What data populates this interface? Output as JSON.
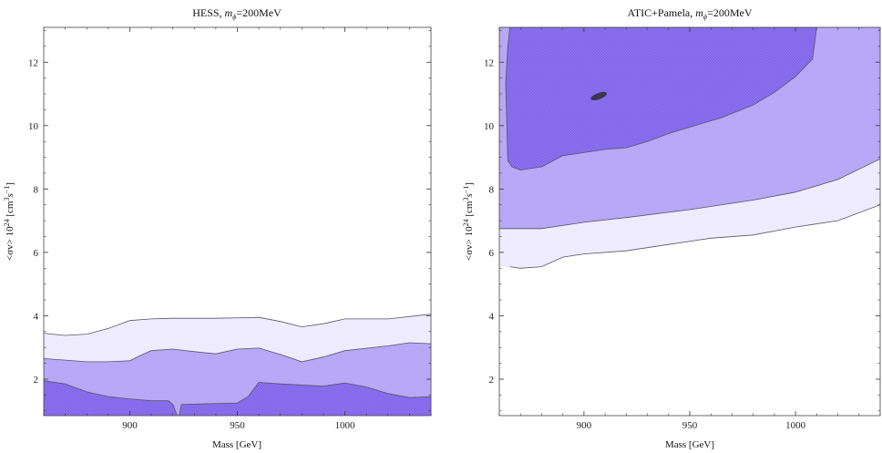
{
  "chart_data": [
    {
      "type": "contour",
      "title": "HESS, ",
      "title_param": "m",
      "title_sub": "ϕ",
      "title_value": "=200MeV",
      "xlabel": "Mass [GeV]",
      "ylabel_prefix": "<σv> 10",
      "ylabel_exp": "24",
      "ylabel_unit_open": " [cm",
      "ylabel_unit_exp1": "3",
      "ylabel_unit_mid": "s",
      "ylabel_unit_exp2": "−1",
      "ylabel_unit_close": "]",
      "xlim": [
        860,
        1040
      ],
      "ylim": [
        0.85,
        13.1
      ],
      "xticks": [
        900,
        950,
        1000
      ],
      "yticks": [
        2,
        4,
        6,
        8,
        10,
        12
      ],
      "colors": {
        "light": "#eeeaff",
        "mid": "#b3a3f6",
        "dark": "#7f63ea",
        "edge": "#555566"
      },
      "regions": [
        {
          "level": "light",
          "upper": [
            [
              860,
              3.45
            ],
            [
              870,
              3.38
            ],
            [
              880,
              3.42
            ],
            [
              890,
              3.6
            ],
            [
              900,
              3.85
            ],
            [
              910,
              3.9
            ],
            [
              920,
              3.92
            ],
            [
              940,
              3.92
            ],
            [
              960,
              3.95
            ],
            [
              970,
              3.82
            ],
            [
              980,
              3.65
            ],
            [
              990,
              3.75
            ],
            [
              1000,
              3.9
            ],
            [
              1020,
              3.9
            ],
            [
              1040,
              4.05
            ]
          ]
        },
        {
          "level": "mid",
          "upper": [
            [
              860,
              2.65
            ],
            [
              870,
              2.6
            ],
            [
              880,
              2.55
            ],
            [
              890,
              2.55
            ],
            [
              900,
              2.58
            ],
            [
              905,
              2.75
            ],
            [
              910,
              2.9
            ],
            [
              920,
              2.95
            ],
            [
              930,
              2.87
            ],
            [
              940,
              2.8
            ],
            [
              950,
              2.95
            ],
            [
              960,
              2.98
            ],
            [
              970,
              2.78
            ],
            [
              980,
              2.55
            ],
            [
              990,
              2.7
            ],
            [
              1000,
              2.9
            ],
            [
              1020,
              3.05
            ],
            [
              1030,
              3.15
            ],
            [
              1040,
              3.12
            ]
          ]
        },
        {
          "level": "dark",
          "upper": [
            [
              860,
              1.95
            ],
            [
              870,
              1.85
            ],
            [
              880,
              1.6
            ],
            [
              890,
              1.45
            ],
            [
              900,
              1.38
            ],
            [
              910,
              1.32
            ],
            [
              918,
              1.32
            ],
            [
              920,
              1.2
            ],
            [
              922,
              0.85
            ],
            [
              923,
              0.85
            ],
            [
              924,
              1.2
            ],
            [
              950,
              1.25
            ],
            [
              955,
              1.45
            ],
            [
              960,
              1.9
            ],
            [
              970,
              1.85
            ],
            [
              990,
              1.78
            ],
            [
              1000,
              1.88
            ],
            [
              1010,
              1.75
            ],
            [
              1020,
              1.55
            ],
            [
              1030,
              1.42
            ],
            [
              1040,
              1.45
            ]
          ]
        }
      ]
    },
    {
      "type": "contour",
      "title": "ATIC+Pamela, ",
      "title_param": "m",
      "title_sub": "ϕ",
      "title_value": "=200MeV",
      "xlabel": "Mass [GeV]",
      "ylabel_prefix": "<σv> 10",
      "ylabel_exp": "24",
      "ylabel_unit_open": " [cm",
      "ylabel_unit_exp1": "3",
      "ylabel_unit_mid": "s",
      "ylabel_unit_exp2": "−1",
      "ylabel_unit_close": "]",
      "xlim": [
        860,
        1040
      ],
      "ylim": [
        0.85,
        13.1
      ],
      "xticks": [
        900,
        950,
        1000
      ],
      "yticks": [
        2,
        4,
        6,
        8,
        10,
        12
      ],
      "colors": {
        "light": "#eeeaff",
        "mid": "#b3a3f6",
        "dark": "#7f63ea",
        "edge": "#555566"
      },
      "regions": [
        {
          "level": "light",
          "lower": [
            [
              865,
              5.55
            ],
            [
              870,
              5.5
            ],
            [
              880,
              5.55
            ],
            [
              890,
              5.85
            ],
            [
              900,
              5.95
            ],
            [
              920,
              6.05
            ],
            [
              940,
              6.25
            ],
            [
              960,
              6.45
            ],
            [
              980,
              6.55
            ],
            [
              1000,
              6.8
            ],
            [
              1020,
              7.0
            ],
            [
              1040,
              7.5
            ]
          ]
        },
        {
          "level": "mid",
          "lower": [
            [
              860,
              6.75
            ],
            [
              880,
              6.75
            ],
            [
              900,
              6.95
            ],
            [
              920,
              7.1
            ],
            [
              950,
              7.35
            ],
            [
              980,
              7.65
            ],
            [
              1000,
              7.9
            ],
            [
              1020,
              8.3
            ],
            [
              1040,
              8.95
            ]
          ]
        },
        {
          "level": "dark",
          "outline": [
            [
              865,
              13.1
            ],
            [
              1010,
              13.1
            ],
            [
              1008,
              12.1
            ],
            [
              1000,
              11.55
            ],
            [
              990,
              11.05
            ],
            [
              980,
              10.65
            ],
            [
              965,
              10.25
            ],
            [
              950,
              9.95
            ],
            [
              940,
              9.75
            ],
            [
              930,
              9.5
            ],
            [
              920,
              9.3
            ],
            [
              910,
              9.25
            ],
            [
              900,
              9.15
            ],
            [
              890,
              9.05
            ],
            [
              880,
              8.7
            ],
            [
              870,
              8.6
            ],
            [
              866,
              8.7
            ],
            [
              864,
              8.9
            ],
            [
              863,
              11.35
            ],
            [
              864,
              12.5
            ]
          ]
        }
      ],
      "blob": {
        "x": 907,
        "y": 10.93,
        "rx": 4,
        "ry": 0.1
      }
    }
  ]
}
